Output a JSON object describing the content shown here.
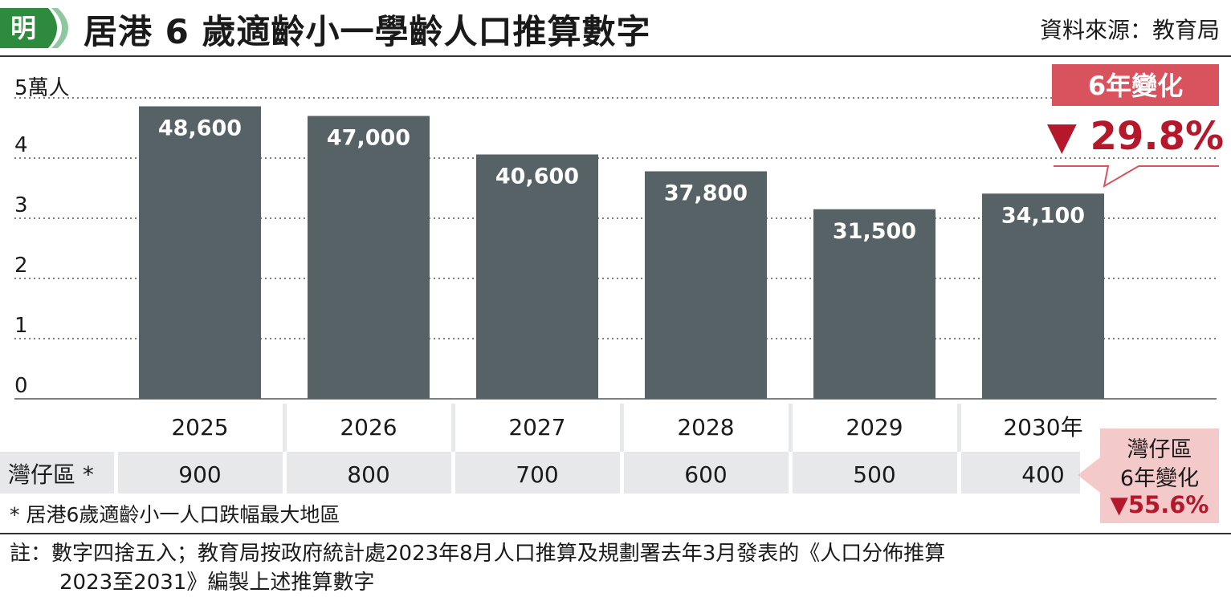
{
  "header": {
    "logo_text": "明",
    "title": "居港 6 歲適齡小一學齡人口推算數字",
    "source": "資料來源：教育局"
  },
  "colors": {
    "bar": "#566266",
    "accent_red": "#b5182b",
    "callout_box": "#d9535e",
    "callout_pink": "#f4c9c9",
    "table_bg": "#e6e8ea",
    "logo_green": "#2e8b3d"
  },
  "chart_data": {
    "type": "bar",
    "ylabel": "5萬人",
    "ylim": [
      0,
      50000
    ],
    "y_ticks": [
      {
        "value": 0,
        "label": "0"
      },
      {
        "value": 10000,
        "label": "1"
      },
      {
        "value": 20000,
        "label": "2"
      },
      {
        "value": 30000,
        "label": "3"
      },
      {
        "value": 40000,
        "label": "4"
      }
    ],
    "grid": "dotted",
    "categories": [
      "2025",
      "2026",
      "2027",
      "2028",
      "2029",
      "2030年"
    ],
    "values": [
      48600,
      47000,
      40600,
      37800,
      31500,
      34100
    ],
    "value_labels": [
      "48,600",
      "47,000",
      "40,600",
      "37,800",
      "31,500",
      "34,100"
    ],
    "change_callout": {
      "title": "6年變化",
      "value": "▼ 29.8%"
    },
    "table_row": {
      "label": "灣仔區 *",
      "values": [
        "900",
        "800",
        "700",
        "600",
        "500",
        "400"
      ]
    }
  },
  "wanchai_callout": {
    "line1": "灣仔區",
    "line2": "6年變化",
    "value": "▼55.6%"
  },
  "footnote": "* 居港6歲適齡小一人口跌幅最大地區",
  "note": {
    "line1": "註：數字四捨五入；教育局按政府統計處2023年8月人口推算及規劃署去年3月發表的《人口分佈推算",
    "line2": "2023至2031》編製上述推算數字"
  }
}
